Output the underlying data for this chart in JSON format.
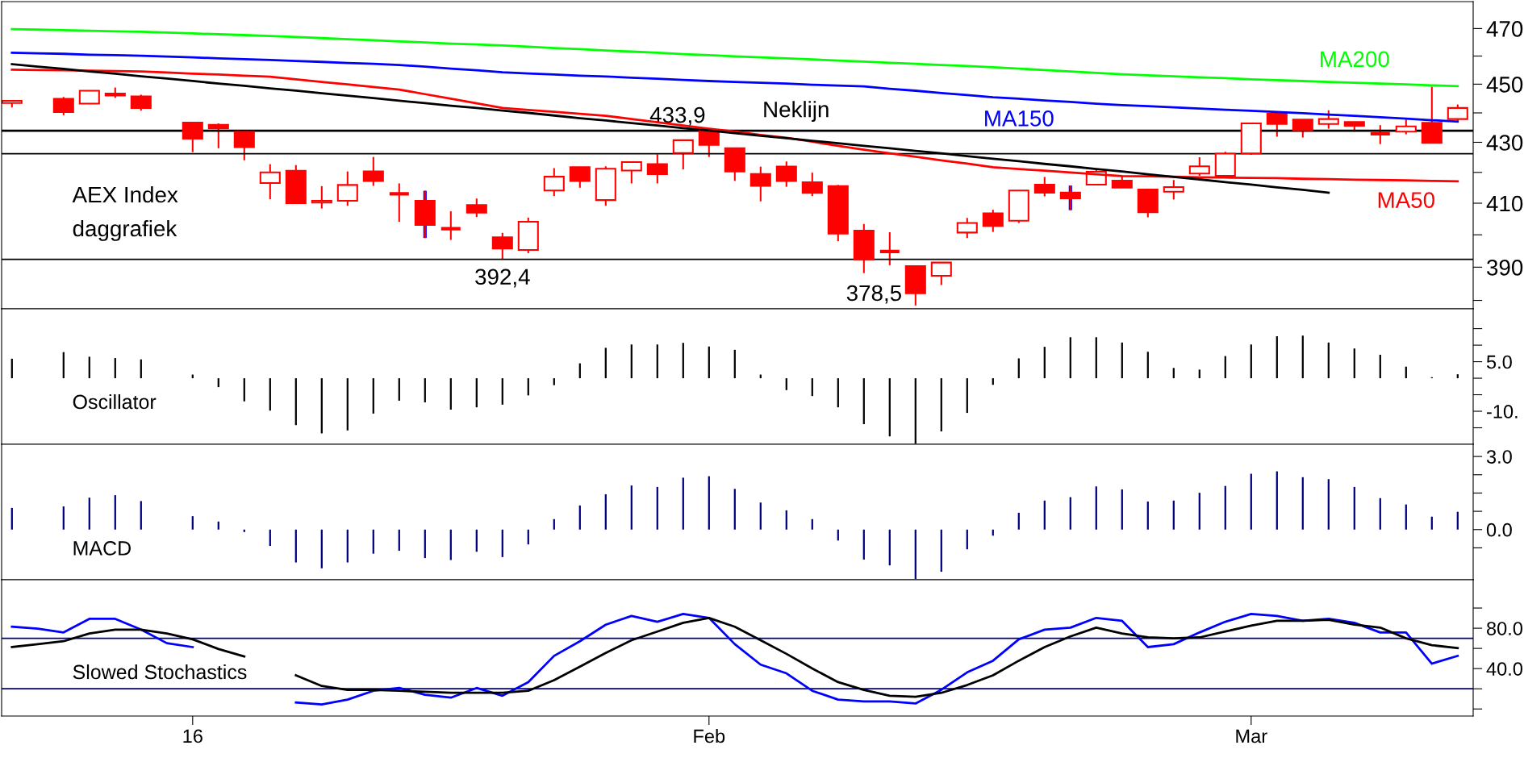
{
  "chart_data": [
    {
      "type": "candlestick",
      "title": "AEX Index\ndaggrafiek",
      "tick_labels": "y",
      "log": true,
      "categories": [
        null,
        null,
        null,
        null,
        null,
        null,
        null,
        "16",
        null,
        null,
        null,
        null,
        null,
        null,
        null,
        null,
        null,
        null,
        null,
        null,
        null,
        null,
        null,
        null,
        null,
        null,
        null,
        "Feb",
        null,
        null,
        null,
        null,
        null,
        null,
        null,
        null,
        null,
        null,
        null,
        null,
        null,
        null,
        null,
        null,
        null,
        null,
        null,
        null,
        "Mar",
        null,
        null,
        null,
        null,
        null,
        null,
        null,
        null
      ],
      "color": "#ff0000",
      "ohlc": [
        [
          443.4,
          444.2,
          441.9,
          444.2
        ],
        null,
        [
          444.9,
          445.5,
          439.2,
          440.3
        ],
        [
          443.2,
          447.7,
          443.2,
          447.7
        ],
        [
          446.7,
          448.8,
          445.2,
          446.0
        ],
        [
          445.7,
          446.3,
          440.8,
          441.7
        ],
        null,
        [
          436.7,
          436.7,
          426.7,
          431.2
        ],
        [
          435.9,
          436.4,
          428.0,
          434.7
        ],
        [
          433.5,
          433.5,
          424.0,
          428.4
        ],
        [
          416.5,
          422.7,
          411.3,
          420.0
        ],
        [
          420.5,
          422.4,
          410.0,
          410.0
        ],
        [
          410.2,
          415.5,
          408.3,
          410.8
        ],
        [
          410.8,
          420.3,
          409.2,
          415.9
        ],
        [
          420.3,
          425.1,
          415.6,
          417.2
        ],
        [
          413.0,
          416.4,
          404.1,
          413.0
        ],
        [
          410.8,
          414.0,
          399.0,
          403.1
        ],
        [
          401.9,
          407.4,
          398.4,
          401.9
        ],
        [
          409.4,
          411.5,
          405.6,
          407.0
        ],
        [
          399.2,
          400.6,
          392.4,
          395.7
        ],
        [
          395.3,
          405.4,
          394.3,
          404.1
        ],
        [
          414.1,
          421.4,
          412.3,
          418.6
        ],
        [
          421.7,
          421.7,
          415.0,
          417.2
        ],
        [
          411.0,
          422.0,
          409.2,
          421.2
        ],
        [
          420.6,
          423.4,
          416.4,
          423.4
        ],
        [
          422.7,
          426.0,
          416.4,
          419.4
        ],
        [
          426.4,
          430.7,
          421.0,
          430.7
        ],
        [
          433.9,
          433.9,
          425.1,
          429.1
        ],
        [
          428.0,
          428.0,
          417.2,
          420.3
        ],
        [
          419.5,
          421.9,
          410.6,
          415.6
        ],
        [
          421.9,
          423.6,
          415.3,
          417.2
        ],
        [
          416.8,
          419.9,
          412.3,
          413.3
        ],
        [
          415.5,
          415.9,
          398.0,
          400.4
        ],
        [
          401.3,
          403.4,
          388.2,
          392.4
        ],
        [
          394.8,
          400.8,
          390.6,
          394.8
        ],
        [
          390.3,
          390.3,
          378.5,
          382.1
        ],
        [
          387.4,
          391.4,
          384.6,
          391.4
        ],
        [
          400.7,
          405.3,
          399.0,
          403.7
        ],
        [
          406.8,
          407.9,
          400.9,
          402.8
        ],
        [
          404.4,
          414.1,
          403.7,
          414.1
        ],
        [
          416.0,
          418.5,
          412.2,
          413.4
        ],
        [
          413.4,
          415.7,
          407.8,
          411.6
        ],
        [
          416.0,
          420.8,
          416.0,
          420.2
        ],
        [
          417.3,
          418.9,
          415.0,
          415.0
        ],
        [
          414.4,
          414.7,
          405.5,
          407.1
        ],
        [
          413.7,
          417.5,
          411.2,
          415.2
        ],
        [
          419.6,
          425.0,
          418.9,
          422.0
        ],
        [
          418.9,
          426.8,
          418.9,
          426.2
        ],
        [
          426.3,
          436.4,
          425.9,
          436.4
        ],
        [
          439.7,
          439.7,
          431.9,
          436.2
        ],
        [
          437.7,
          437.7,
          431.6,
          434.1
        ],
        [
          436.2,
          440.9,
          434.6,
          437.9
        ],
        [
          436.9,
          436.9,
          433.6,
          435.6
        ],
        [
          432.9,
          435.8,
          429.4,
          432.9
        ],
        [
          433.6,
          437.7,
          432.7,
          435.4
        ],
        [
          436.6,
          449.1,
          429.8,
          429.8
        ],
        [
          437.9,
          442.9,
          436.8,
          441.7
        ]
      ],
      "value_labels": [
        null,
        null,
        null,
        null,
        null,
        null,
        null,
        null,
        null,
        null,
        null,
        null,
        null,
        null,
        null,
        null,
        null,
        null,
        null,
        "392,4",
        null,
        null,
        null,
        null,
        null,
        null,
        null,
        "433,9",
        null,
        null,
        null,
        null,
        null,
        null,
        null,
        "378,5",
        null,
        null,
        null,
        null,
        null,
        null,
        null,
        null,
        null,
        null,
        null,
        null,
        null,
        null,
        null,
        null,
        null,
        null,
        null,
        null,
        null
      ],
      "series": [
        {
          "name": "MA200",
          "type": "line",
          "color": "#00ff00",
          "values": [
            469.8,
            469.6,
            469.4,
            469.2,
            469.0,
            468.8,
            468.5,
            468.2,
            467.9,
            467.6,
            467.3,
            466.9,
            466.5,
            466.1,
            465.7,
            465.3,
            464.9,
            464.5,
            464.2,
            463.8,
            463.4,
            462.9,
            462.5,
            462.0,
            461.6,
            461.2,
            460.7,
            460.3,
            459.9,
            459.5,
            459.2,
            458.8,
            458.4,
            458.0,
            457.6,
            457.2,
            456.8,
            456.4,
            456.0,
            455.5,
            455.0,
            454.5,
            454.0,
            453.5,
            453.1,
            452.8,
            452.4,
            452.1,
            451.7,
            451.4,
            451.1,
            450.8,
            450.5,
            450.2,
            449.9,
            449.6,
            449.3
          ]
        },
        {
          "name": "MA150",
          "type": "line",
          "color": "#0000ff",
          "values": [
            461.2,
            461.0,
            460.8,
            460.5,
            460.3,
            460.1,
            459.8,
            459.5,
            459.2,
            458.9,
            458.6,
            458.2,
            457.9,
            457.5,
            457.2,
            456.8,
            456.2,
            455.5,
            454.9,
            454.2,
            453.8,
            453.4,
            453.0,
            452.7,
            452.3,
            451.9,
            451.5,
            451.1,
            450.8,
            450.5,
            450.2,
            449.8,
            449.5,
            449.2,
            448.4,
            447.7,
            446.9,
            446.2,
            445.4,
            444.9,
            444.3,
            443.8,
            443.2,
            442.7,
            442.3,
            441.9,
            441.5,
            441.1,
            440.7,
            440.3,
            439.9,
            439.4,
            439.0,
            438.5,
            438.0,
            437.5,
            437.0
          ]
        },
        {
          "name": "MA50",
          "type": "line",
          "color": "#ff0000",
          "values": [
            455.1,
            455.0,
            454.9,
            454.8,
            454.6,
            454.5,
            454.1,
            453.7,
            453.4,
            453.0,
            452.6,
            451.7,
            450.8,
            449.9,
            449.0,
            448.1,
            446.5,
            444.9,
            443.3,
            441.7,
            441.0,
            440.4,
            439.7,
            439.0,
            437.9,
            436.8,
            435.7,
            434.6,
            433.6,
            432.5,
            431.5,
            430.2,
            428.8,
            427.5,
            426.3,
            425.2,
            424.0,
            422.9,
            421.7,
            421.1,
            420.6,
            420.0,
            419.4,
            418.8,
            418.7,
            418.6,
            418.4,
            418.3,
            418.2,
            418.1,
            417.9,
            417.8,
            417.6,
            417.5,
            417.4,
            417.2,
            417.1
          ]
        },
        {
          "type": "bar",
          "color": "#0000ff",
          "values": [
            null,
            null,
            null,
            null,
            null,
            null,
            null,
            null,
            null,
            null,
            null,
            null,
            null,
            null,
            null,
            null,
            15.0,
            null,
            null,
            null,
            null,
            null,
            null,
            null,
            null,
            null,
            null,
            null,
            null,
            null,
            null,
            null,
            null,
            null,
            null,
            null,
            null,
            null,
            null,
            null,
            null,
            7.9,
            null,
            null,
            null,
            null,
            null,
            null,
            null,
            null,
            null,
            null,
            null,
            null,
            null,
            null,
            null
          ],
          "base": [
            null,
            null,
            null,
            null,
            null,
            null,
            null,
            null,
            null,
            null,
            null,
            null,
            null,
            null,
            null,
            null,
            399.0,
            null,
            null,
            null,
            null,
            null,
            null,
            null,
            null,
            null,
            null,
            null,
            null,
            null,
            null,
            null,
            null,
            null,
            null,
            null,
            null,
            null,
            null,
            null,
            null,
            407.8,
            null,
            null,
            null,
            null,
            null,
            null,
            null,
            null,
            null,
            null,
            null,
            null,
            null,
            null,
            null
          ]
        },
        {
          "type": "line",
          "color": "#000000",
          "values": [
            457.1,
            456.2,
            455.4,
            454.5,
            453.7,
            452.8,
            452.0,
            451.1,
            450.2,
            449.4,
            448.5,
            447.7,
            446.8,
            446.0,
            445.1,
            444.2,
            443.4,
            442.5,
            441.7,
            440.8,
            440.0,
            439.1,
            438.2,
            437.4,
            436.5,
            435.7,
            434.8,
            434.0,
            433.1,
            432.2,
            431.4,
            430.5,
            429.7,
            428.8,
            428.0,
            427.1,
            426.3,
            425.4,
            424.5,
            423.7,
            422.8,
            422.0,
            421.1,
            420.3,
            419.4,
            418.5,
            417.7,
            416.8,
            416.0,
            415.1,
            414.3,
            413.4,
            null,
            null,
            null,
            null,
            null
          ]
        }
      ],
      "ref_lines": [
        {
          "axis": "y",
          "value": 433.9,
          "label": "Neklijn",
          "color": "#000000"
        },
        {
          "axis": "y",
          "value": 426.2,
          "color": "#000000"
        },
        {
          "axis": "y",
          "value": 392.4,
          "color": "#000000"
        }
      ],
      "ylim": [
        377.5,
        480
      ],
      "yticks": [
        {
          "value": 380,
          "label": null
        },
        390,
        {
          "value": 400,
          "label": null
        },
        410,
        {
          "value": 420,
          "label": null
        },
        430,
        {
          "value": 440,
          "label": null
        },
        450,
        {
          "value": 460,
          "label": null
        },
        470
      ]
    },
    {
      "type": "bar",
      "title": "Oscillator",
      "tick_labels": "y",
      "categories": [
        null,
        null,
        null,
        null,
        null,
        null,
        null,
        "16",
        null,
        null,
        null,
        null,
        null,
        null,
        null,
        null,
        null,
        null,
        null,
        null,
        null,
        null,
        null,
        null,
        null,
        null,
        null,
        "Feb",
        null,
        null,
        null,
        null,
        null,
        null,
        null,
        null,
        null,
        null,
        null,
        null,
        null,
        null,
        null,
        null,
        null,
        null,
        null,
        null,
        "Mar",
        null,
        null,
        null,
        null,
        null,
        null,
        null,
        null
      ],
      "series": [
        {
          "color": "#000000",
          "values": [
            5.9,
            null,
            7.9,
            6.5,
            6.1,
            5.7,
            null,
            1.1,
            -2.7,
            -7.0,
            -9.8,
            -14.2,
            -16.7,
            -15.8,
            -10.7,
            -6.8,
            -7.3,
            -9.5,
            -8.8,
            -8.0,
            -5.2,
            -2.1,
            4.5,
            9.2,
            10.2,
            10.2,
            10.7,
            9.6,
            8.6,
            1.1,
            -3.6,
            -5.4,
            -8.8,
            -13.9,
            -17.6,
            -19.8,
            -16.1,
            -10.5,
            -2.0,
            6.0,
            9.5,
            12.4,
            12.4,
            10.8,
            8.0,
            3.1,
            2.6,
            6.7,
            10.2,
            12.7,
            12.9,
            10.8,
            9.0,
            7.1,
            3.5,
            0.3,
            1.2
          ]
        }
      ],
      "ylim": [
        -20,
        21
      ],
      "yticks": [
        {
          "value": -15,
          "label": null
        },
        {
          "value": -10,
          "label": "-10."
        },
        {
          "value": -5,
          "label": null
        },
        {
          "value": 0,
          "label": null
        },
        {
          "value": 5,
          "label": "5.0"
        },
        {
          "value": 10,
          "label": null
        },
        {
          "value": 15,
          "label": null
        }
      ]
    },
    {
      "type": "bar",
      "title": "MACD",
      "tick_labels": "y",
      "categories": [
        null,
        null,
        null,
        null,
        null,
        null,
        null,
        "16",
        null,
        null,
        null,
        null,
        null,
        null,
        null,
        null,
        null,
        null,
        null,
        null,
        null,
        null,
        null,
        null,
        null,
        null,
        null,
        "Feb",
        null,
        null,
        null,
        null,
        null,
        null,
        null,
        null,
        null,
        null,
        null,
        null,
        null,
        null,
        null,
        null,
        null,
        null,
        null,
        null,
        "Mar",
        null,
        null,
        null,
        null,
        null,
        null,
        null,
        null
      ],
      "series": [
        {
          "color": "#000080",
          "values": [
            0.89,
            null,
            0.95,
            1.31,
            1.41,
            1.17,
            null,
            0.55,
            0.33,
            -0.1,
            -0.67,
            -1.35,
            -1.59,
            -1.35,
            -0.99,
            -0.87,
            -1.17,
            -1.25,
            -0.91,
            -1.13,
            -0.61,
            0.43,
            0.99,
            1.45,
            1.81,
            1.75,
            2.13,
            2.19,
            1.67,
            1.11,
            0.79,
            0.43,
            -0.45,
            -1.23,
            -1.47,
            -2.03,
            -1.73,
            -0.81,
            -0.25,
            0.69,
            1.19,
            1.33,
            1.77,
            1.65,
            1.15,
            1.19,
            1.51,
            1.79,
            2.29,
            2.39,
            2.15,
            2.07,
            1.75,
            1.29,
            1.03,
            0.53,
            0.73
          ]
        }
      ],
      "ylim": [
        -2.06,
        3.5
      ],
      "yticks": [
        {
          "value": -0.75,
          "label": null
        },
        {
          "value": 0,
          "label": "0.0"
        },
        {
          "value": 0.75,
          "label": null
        },
        {
          "value": 1.5,
          "label": null
        },
        {
          "value": 2.25,
          "label": null
        },
        {
          "value": 3,
          "label": "3.0"
        }
      ]
    },
    {
      "type": "line",
      "title": "Slowed Stochastics",
      "categories": [
        null,
        null,
        null,
        null,
        null,
        null,
        null,
        "16",
        null,
        null,
        null,
        null,
        null,
        null,
        null,
        null,
        null,
        null,
        null,
        null,
        null,
        null,
        null,
        null,
        null,
        null,
        null,
        "Feb",
        null,
        null,
        null,
        null,
        null,
        null,
        null,
        null,
        null,
        null,
        null,
        null,
        null,
        null,
        null,
        null,
        null,
        null,
        null,
        null,
        "Mar",
        null,
        null,
        null,
        null,
        null,
        null,
        null,
        null
      ],
      "series": [
        {
          "color": "#0000ff",
          "values": [
            81.5,
            79.6,
            75.8,
            89.3,
            89.3,
            78.6,
            65.2,
            61.3,
            null,
            null,
            null,
            6.4,
            4.5,
            9.3,
            18.0,
            20.8,
            14.1,
            11.2,
            20.8,
            13.1,
            26.6,
            52.6,
            67.1,
            83.5,
            92.2,
            86.4,
            94.1,
            90.2,
            64.2,
            43.9,
            35.3,
            18.0,
            9.3,
            7.4,
            7.4,
            5.4,
            19.0,
            36.3,
            47.8,
            69.0,
            78.6,
            80.6,
            90.2,
            87.3,
            61.3,
            64.2,
            75.8,
            86.4,
            94.1,
            92.2,
            87.3,
            89.3,
            85.4,
            75.8,
            75.8,
            44.9,
            52.6
          ]
        },
        {
          "color": "#000000",
          "values": [
            61.3,
            64.2,
            67.1,
            74.8,
            78.6,
            78.6,
            74.8,
            69.0,
            59.4,
            52.0,
            null,
            33.4,
            22.8,
            18.9,
            18.9,
            18.0,
            17.0,
            16.0,
            16.0,
            16.0,
            18.0,
            28.6,
            42.0,
            55.5,
            68.1,
            76.7,
            85.4,
            90.2,
            81.5,
            68.1,
            54.6,
            40.1,
            26.6,
            18.9,
            13.1,
            12.1,
            16.0,
            23.7,
            33.4,
            47.8,
            61.3,
            71.9,
            80.6,
            74.8,
            70.9,
            70.0,
            70.9,
            76.7,
            82.5,
            87.3,
            87.3,
            88.3,
            83.5,
            80.6,
            70.0,
            63.2,
            60.3
          ]
        }
      ],
      "ref_lines": [
        {
          "axis": "y",
          "value": 70,
          "color": "#000080"
        },
        {
          "axis": "y",
          "value": 20,
          "color": "#000080"
        }
      ],
      "ylim": [
        -7,
        128
      ],
      "yticks": [
        {
          "value": 0,
          "label": null
        },
        {
          "value": 20,
          "label": null
        },
        {
          "value": 40,
          "label": "40.0"
        },
        {
          "value": 60,
          "label": null
        },
        {
          "value": 80,
          "label": "80.0"
        },
        {
          "value": 100,
          "label": null
        }
      ]
    }
  ]
}
